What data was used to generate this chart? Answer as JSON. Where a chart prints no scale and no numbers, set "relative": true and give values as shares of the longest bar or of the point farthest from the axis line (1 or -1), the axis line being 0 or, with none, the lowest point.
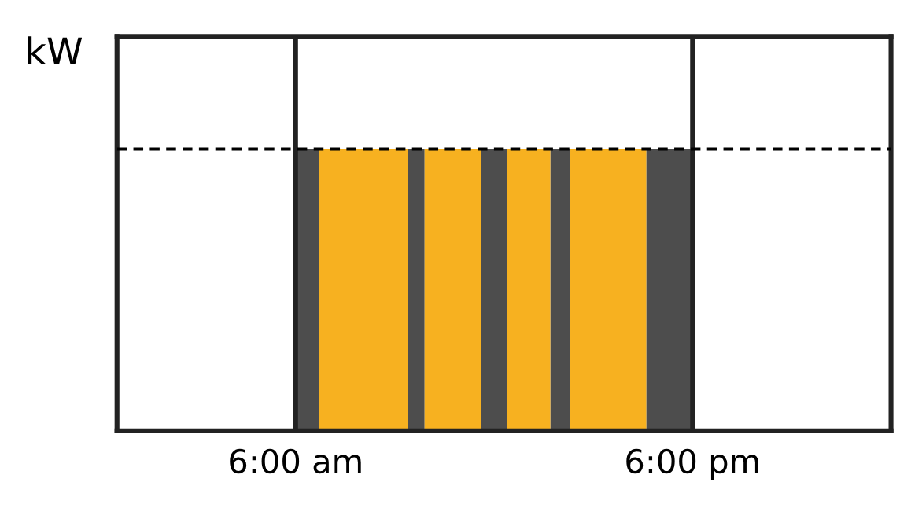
{
  "chart_data": {
    "type": "area",
    "relative": true,
    "ylabel": "kW",
    "xlim": [
      0.6,
      24
    ],
    "xticks": [
      {
        "value": 6,
        "label": "6:00 am"
      },
      {
        "value": 18,
        "label": "6:00 pm"
      }
    ],
    "grid": "x",
    "tick_labels": "x",
    "series": [
      {
        "color": "#4d4d4d",
        "x": [
          6,
          6,
          6.7,
          6.7,
          9.4,
          9.4,
          9.9,
          9.9,
          11.6,
          11.6,
          12.4,
          12.4,
          13.7,
          13.7,
          14.3,
          14.3,
          16.6,
          16.6,
          18,
          18
        ],
        "values": [
          0,
          1,
          1,
          0,
          0,
          1,
          1,
          0,
          0,
          1,
          1,
          0,
          0,
          1,
          1,
          0,
          0,
          1,
          1,
          0
        ]
      },
      {
        "color": "#f7b120",
        "x": [
          6.7,
          6.7,
          9.4,
          9.4,
          9.9,
          9.9,
          11.6,
          11.6,
          12.4,
          12.4,
          13.7,
          13.7,
          14.3,
          14.3,
          16.6,
          16.6
        ],
        "values": [
          0,
          1,
          1,
          0,
          0,
          1,
          1,
          0,
          0,
          1,
          1,
          0,
          0,
          1,
          1,
          0
        ]
      }
    ],
    "ref_lines": [
      {
        "axis": "y",
        "value": 1,
        "color": "#000000",
        "line_style": "dashed"
      }
    ]
  }
}
